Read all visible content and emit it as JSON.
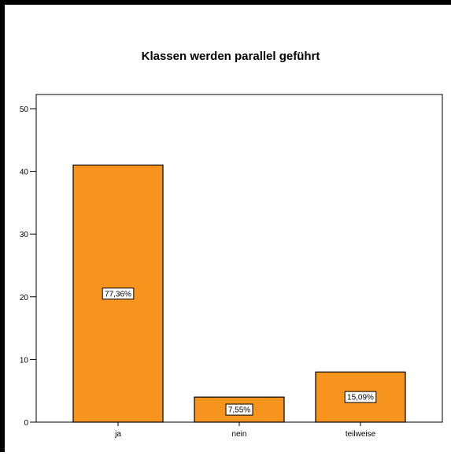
{
  "chart_data": {
    "type": "bar",
    "title": "Klassen werden parallel geführt",
    "xlabel": "",
    "ylabel": "",
    "categories": [
      "ja",
      "nein",
      "teilweise"
    ],
    "values": [
      41,
      4,
      8
    ],
    "data_labels": [
      "77,36%",
      "7,55%",
      "15,09%"
    ],
    "ylim": [
      0,
      52
    ],
    "yticks": [
      0,
      10,
      20,
      30,
      40,
      50
    ],
    "grid": false,
    "legend": "none",
    "bar_color": "#f7941d",
    "bar_edge_color": "#000000",
    "label_box_color": "#ffffff",
    "frame_color": "#000000"
  }
}
